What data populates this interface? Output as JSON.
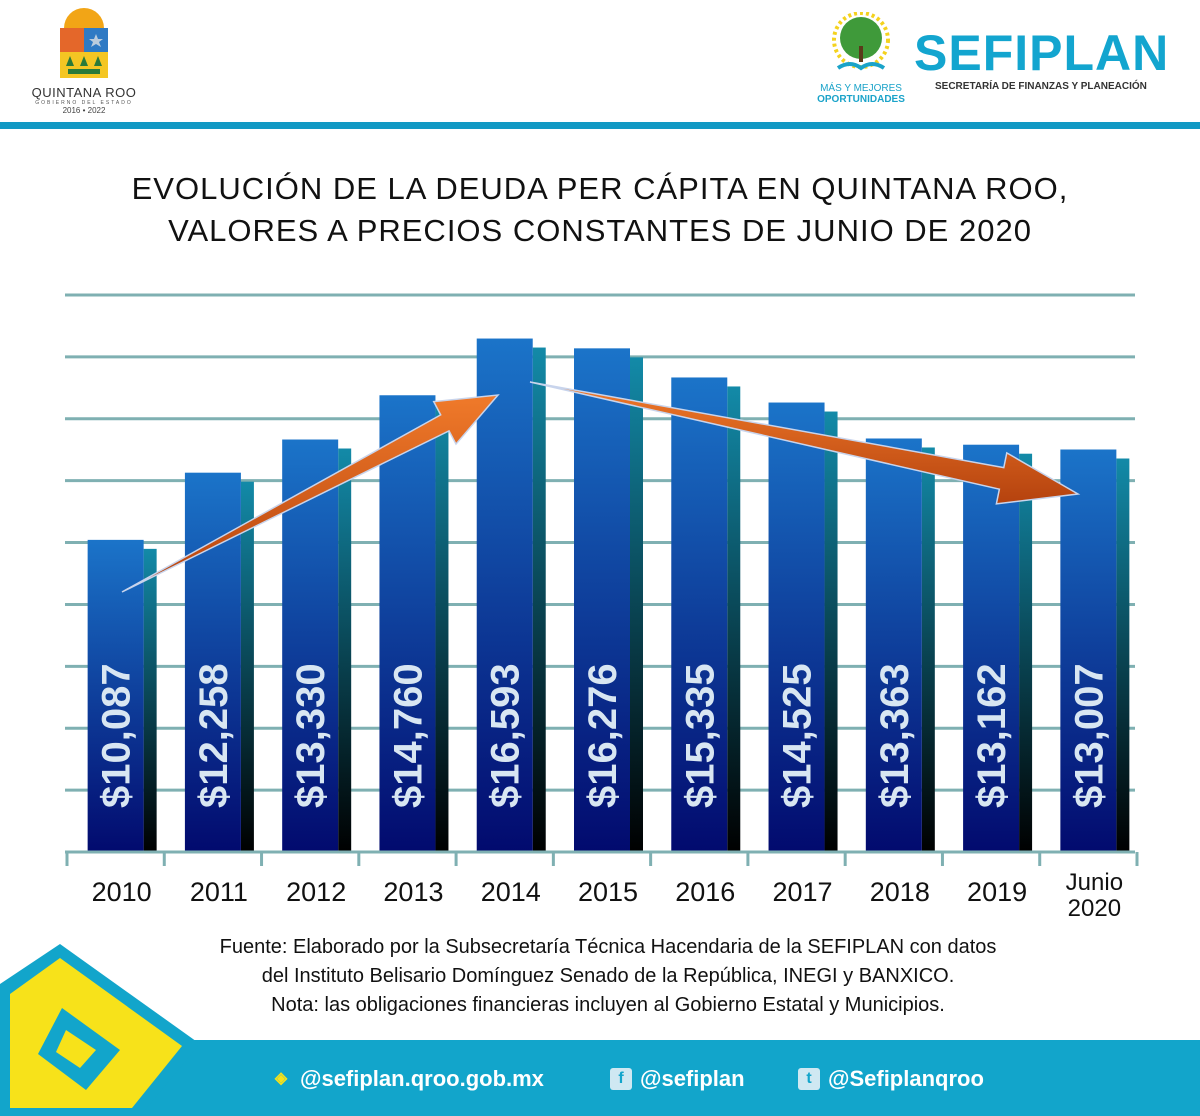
{
  "header": {
    "left_logo": {
      "name": "QUINTANA ROO",
      "subtitle": "GOBIERNO DEL ESTADO",
      "years": "2016 • 2022"
    },
    "right_logo": {
      "tagline_1": "MÁS Y MEJORES",
      "tagline_2": "OPORTUNIDADES",
      "name": "SEFIPLAN",
      "subtitle": "SECRETARÍA DE FINANZAS Y PLANEACIÓN"
    },
    "accent": "#1199c4"
  },
  "chart_data": {
    "type": "bar",
    "title": "EVOLUCIÓN DE LA DEUDA PER CÁPITA EN QUINTANA ROO, VALORES A PRECIOS CONSTANTES DE JUNIO DE 2020",
    "title_lines": [
      "EVOLUCIÓN DE LA DEUDA PER CÁPITA EN QUINTANA ROO,",
      "VALORES A PRECIOS CONSTANTES DE JUNIO DE 2020"
    ],
    "categories": [
      "2010",
      "2011",
      "2012",
      "2013",
      "2014",
      "2015",
      "2016",
      "2017",
      "2018",
      "2019",
      "Junio 2020"
    ],
    "values": [
      10087,
      12258,
      13330,
      14760,
      16593,
      16276,
      15335,
      14525,
      13363,
      13162,
      13007
    ],
    "data_labels": [
      "$10,087",
      "$12,258",
      "$13,330",
      "$14,760",
      "$16,593",
      "$16,276",
      "$15,335",
      "$14,525",
      "$13,363",
      "$13,162",
      "$13,007"
    ],
    "xlabel": "",
    "ylabel": "",
    "ylim": [
      0,
      18000
    ],
    "grid_step": 2000,
    "grid": true,
    "annotations": [
      "arrow up 2010→2014",
      "arrow down 2014→Junio 2020"
    ],
    "colors": {
      "bar_top": "#1b74c9",
      "bar_bottom": "#020a6e",
      "grid": "#7fb0b2",
      "arrow": "#e0641e",
      "label": "#d8e6f2"
    }
  },
  "notes": [
    "Fuente: Elaborado por la Subsecretaría Técnica Hacendaria de la SEFIPLAN con datos",
    "del Instituto Belisario Domínguez Senado de la República, INEGI y BANXICO.",
    "Nota: las obligaciones financieras incluyen al Gobierno Estatal y Municipios."
  ],
  "footer": {
    "web": "@sefiplan.qroo.gob.mx",
    "facebook": "@sefiplan",
    "twitter": "@Sefiplanqroo",
    "bg": "#12a5cb"
  }
}
